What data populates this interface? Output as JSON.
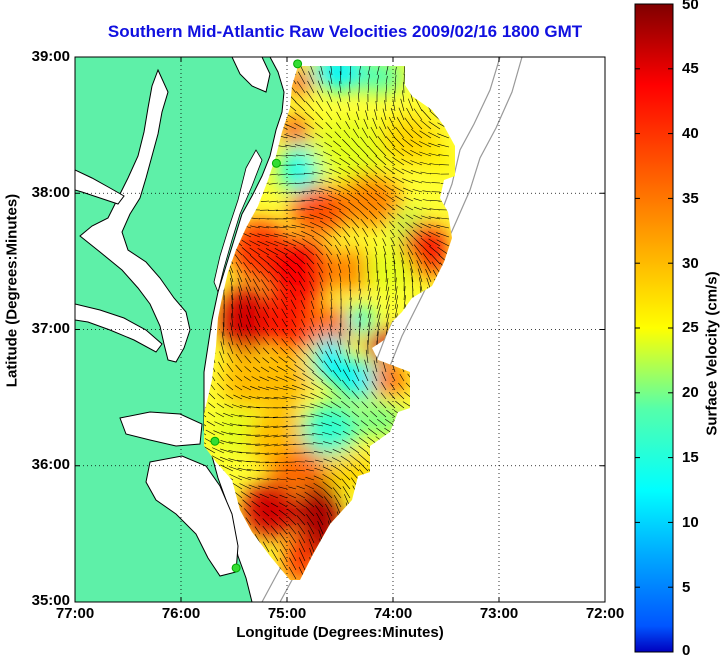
{
  "title": "Southern Mid-Atlantic Raw Velocities 2009/02/16 1800 GMT",
  "xaxis": {
    "label": "Longitude (Degrees:Minutes)",
    "ticks": [
      "77:00",
      "76:00",
      "75:00",
      "74:00",
      "73:00",
      "72:00"
    ],
    "range_deg_west": [
      77,
      72
    ]
  },
  "yaxis": {
    "label": "Latitude (Degrees:Minutes)",
    "ticks": [
      "39:00",
      "38:00",
      "37:00",
      "36:00",
      "35:00"
    ],
    "range_deg_north": [
      35,
      39
    ]
  },
  "colorbar": {
    "label": "Surface Velocity (cm/s)",
    "ticks": [
      "50",
      "45",
      "40",
      "35",
      "30",
      "25",
      "20",
      "15",
      "10",
      "5",
      "0"
    ],
    "range": [
      0,
      50
    ],
    "colormap": "jet"
  },
  "colors": {
    "land": "#5ef0a8",
    "water": "#ffffff",
    "title": "#1010e0",
    "coast": "#000000",
    "bathymetry": "#999999",
    "station": "#33dd33"
  },
  "chart_data": {
    "type": "heatmap",
    "title": "Southern Mid-Atlantic Raw Velocities 2009/02/16 1800 GMT",
    "xlabel": "Longitude (Degrees:Minutes)",
    "ylabel": "Latitude (Degrees:Minutes)",
    "colorbar_label": "Surface Velocity (cm/s)",
    "zlim": [
      0,
      50
    ],
    "grid": true,
    "stations": [
      {
        "lon": 74.9,
        "lat": 38.95
      },
      {
        "lon": 75.1,
        "lat": 38.22
      },
      {
        "lon": 75.68,
        "lat": 36.18
      },
      {
        "lon": 75.48,
        "lat": 35.25
      }
    ]
  }
}
